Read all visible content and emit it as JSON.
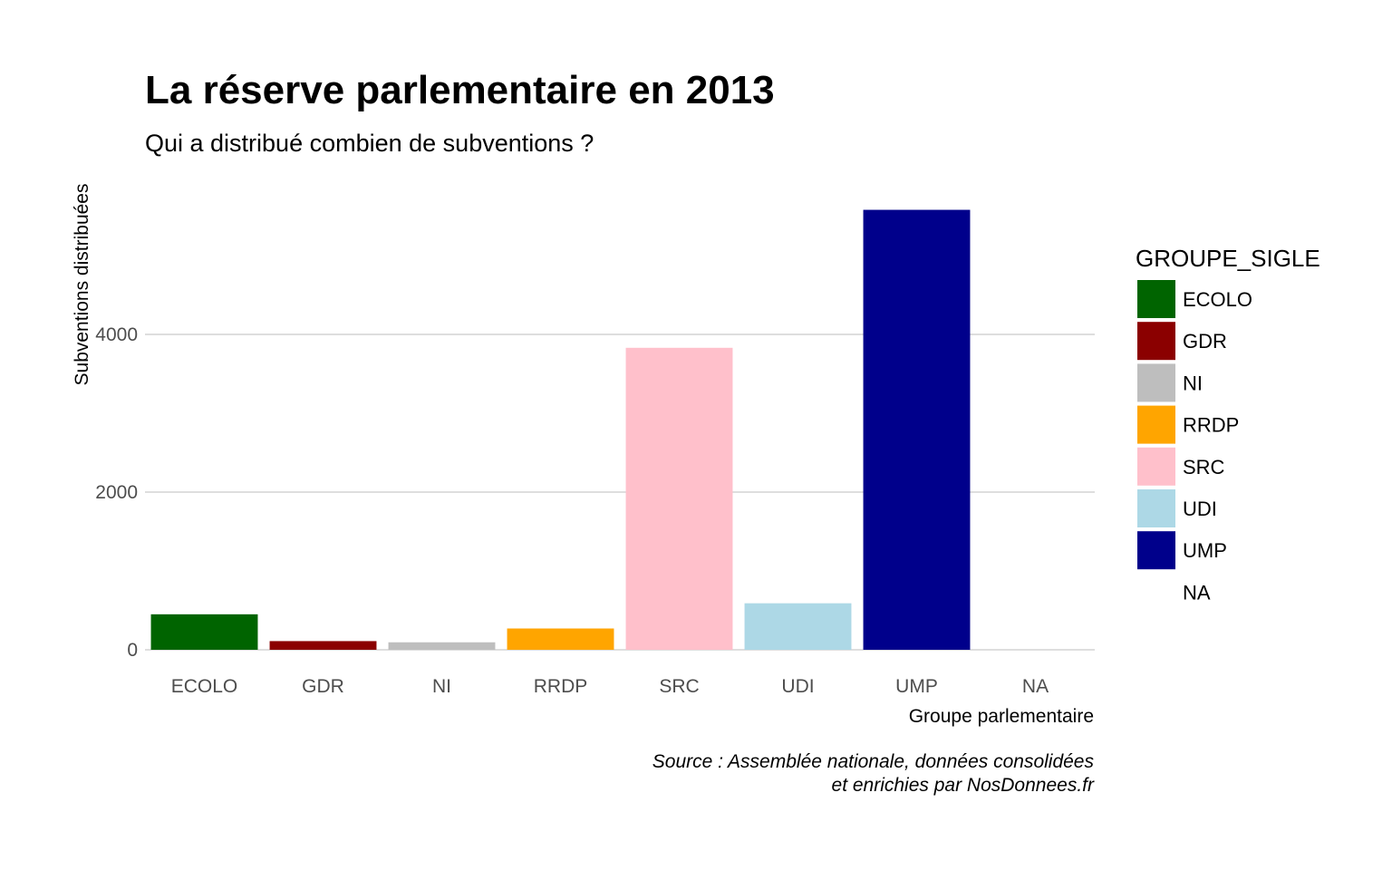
{
  "chart_data": {
    "type": "bar",
    "title": "La réserve parlementaire en 2013",
    "subtitle": "Qui a distribué combien de subventions ?",
    "xlabel": "Groupe parlementaire",
    "ylabel": "Subventions distribuées",
    "categories": [
      "ECOLO",
      "GDR",
      "NI",
      "RRDP",
      "SRC",
      "UDI",
      "UMP",
      "NA"
    ],
    "values": [
      450,
      110,
      95,
      270,
      3830,
      590,
      5580,
      0
    ],
    "colors": [
      "#006400",
      "#8b0000",
      "#bebebe",
      "#ffa500",
      "#ffc0cb",
      "#add8e6",
      "#00008b",
      "#ffffff"
    ],
    "ylim": [
      0,
      5800
    ],
    "yticks": [
      0,
      2000,
      4000
    ],
    "grid": true,
    "legend": {
      "title": "GROUPE_SIGLE",
      "position": "right",
      "items": [
        "ECOLO",
        "GDR",
        "NI",
        "RRDP",
        "SRC",
        "UDI",
        "UMP",
        "NA"
      ]
    },
    "caption": [
      "Source : Assemblée nationale, données consolidées",
      "et enrichies par NosDonnees.fr"
    ]
  }
}
